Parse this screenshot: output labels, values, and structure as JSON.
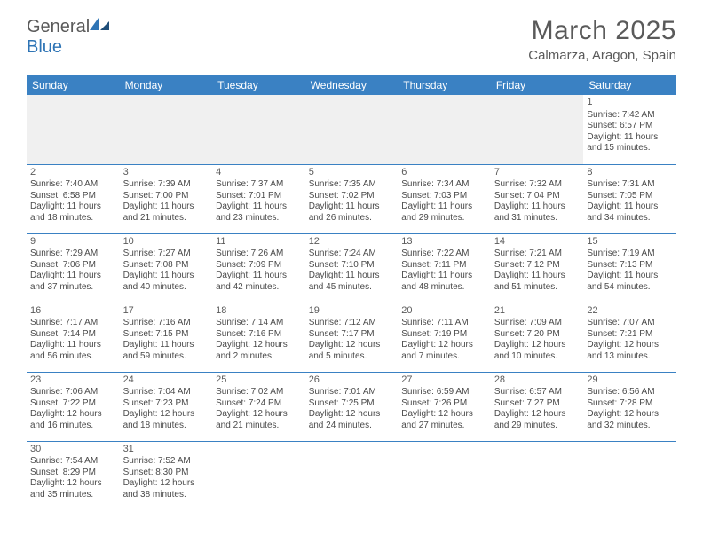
{
  "logo": {
    "word1": "General",
    "word2": "Blue"
  },
  "title": "March 2025",
  "location": "Calmarza, Aragon, Spain",
  "colors": {
    "header_bg": "#3a81c3",
    "header_text": "#ffffff",
    "border": "#3a81c3",
    "text": "#4a4a4a",
    "title_text": "#5a5a5a",
    "empty_cell_bg": "#f0f0f0",
    "logo_blue": "#2e74b5"
  },
  "day_headers": [
    "Sunday",
    "Monday",
    "Tuesday",
    "Wednesday",
    "Thursday",
    "Friday",
    "Saturday"
  ],
  "weeks": [
    [
      null,
      null,
      null,
      null,
      null,
      null,
      {
        "n": "1",
        "sr": "7:42 AM",
        "ss": "6:57 PM",
        "dl": "11 hours and 15 minutes."
      }
    ],
    [
      {
        "n": "2",
        "sr": "7:40 AM",
        "ss": "6:58 PM",
        "dl": "11 hours and 18 minutes."
      },
      {
        "n": "3",
        "sr": "7:39 AM",
        "ss": "7:00 PM",
        "dl": "11 hours and 21 minutes."
      },
      {
        "n": "4",
        "sr": "7:37 AM",
        "ss": "7:01 PM",
        "dl": "11 hours and 23 minutes."
      },
      {
        "n": "5",
        "sr": "7:35 AM",
        "ss": "7:02 PM",
        "dl": "11 hours and 26 minutes."
      },
      {
        "n": "6",
        "sr": "7:34 AM",
        "ss": "7:03 PM",
        "dl": "11 hours and 29 minutes."
      },
      {
        "n": "7",
        "sr": "7:32 AM",
        "ss": "7:04 PM",
        "dl": "11 hours and 31 minutes."
      },
      {
        "n": "8",
        "sr": "7:31 AM",
        "ss": "7:05 PM",
        "dl": "11 hours and 34 minutes."
      }
    ],
    [
      {
        "n": "9",
        "sr": "7:29 AM",
        "ss": "7:06 PM",
        "dl": "11 hours and 37 minutes."
      },
      {
        "n": "10",
        "sr": "7:27 AM",
        "ss": "7:08 PM",
        "dl": "11 hours and 40 minutes."
      },
      {
        "n": "11",
        "sr": "7:26 AM",
        "ss": "7:09 PM",
        "dl": "11 hours and 42 minutes."
      },
      {
        "n": "12",
        "sr": "7:24 AM",
        "ss": "7:10 PM",
        "dl": "11 hours and 45 minutes."
      },
      {
        "n": "13",
        "sr": "7:22 AM",
        "ss": "7:11 PM",
        "dl": "11 hours and 48 minutes."
      },
      {
        "n": "14",
        "sr": "7:21 AM",
        "ss": "7:12 PM",
        "dl": "11 hours and 51 minutes."
      },
      {
        "n": "15",
        "sr": "7:19 AM",
        "ss": "7:13 PM",
        "dl": "11 hours and 54 minutes."
      }
    ],
    [
      {
        "n": "16",
        "sr": "7:17 AM",
        "ss": "7:14 PM",
        "dl": "11 hours and 56 minutes."
      },
      {
        "n": "17",
        "sr": "7:16 AM",
        "ss": "7:15 PM",
        "dl": "11 hours and 59 minutes."
      },
      {
        "n": "18",
        "sr": "7:14 AM",
        "ss": "7:16 PM",
        "dl": "12 hours and 2 minutes."
      },
      {
        "n": "19",
        "sr": "7:12 AM",
        "ss": "7:17 PM",
        "dl": "12 hours and 5 minutes."
      },
      {
        "n": "20",
        "sr": "7:11 AM",
        "ss": "7:19 PM",
        "dl": "12 hours and 7 minutes."
      },
      {
        "n": "21",
        "sr": "7:09 AM",
        "ss": "7:20 PM",
        "dl": "12 hours and 10 minutes."
      },
      {
        "n": "22",
        "sr": "7:07 AM",
        "ss": "7:21 PM",
        "dl": "12 hours and 13 minutes."
      }
    ],
    [
      {
        "n": "23",
        "sr": "7:06 AM",
        "ss": "7:22 PM",
        "dl": "12 hours and 16 minutes."
      },
      {
        "n": "24",
        "sr": "7:04 AM",
        "ss": "7:23 PM",
        "dl": "12 hours and 18 minutes."
      },
      {
        "n": "25",
        "sr": "7:02 AM",
        "ss": "7:24 PM",
        "dl": "12 hours and 21 minutes."
      },
      {
        "n": "26",
        "sr": "7:01 AM",
        "ss": "7:25 PM",
        "dl": "12 hours and 24 minutes."
      },
      {
        "n": "27",
        "sr": "6:59 AM",
        "ss": "7:26 PM",
        "dl": "12 hours and 27 minutes."
      },
      {
        "n": "28",
        "sr": "6:57 AM",
        "ss": "7:27 PM",
        "dl": "12 hours and 29 minutes."
      },
      {
        "n": "29",
        "sr": "6:56 AM",
        "ss": "7:28 PM",
        "dl": "12 hours and 32 minutes."
      }
    ],
    [
      {
        "n": "30",
        "sr": "7:54 AM",
        "ss": "8:29 PM",
        "dl": "12 hours and 35 minutes."
      },
      {
        "n": "31",
        "sr": "7:52 AM",
        "ss": "8:30 PM",
        "dl": "12 hours and 38 minutes."
      },
      null,
      null,
      null,
      null,
      null
    ]
  ],
  "labels": {
    "sunrise_prefix": "Sunrise: ",
    "sunset_prefix": "Sunset: ",
    "daylight_prefix": "Daylight: "
  }
}
